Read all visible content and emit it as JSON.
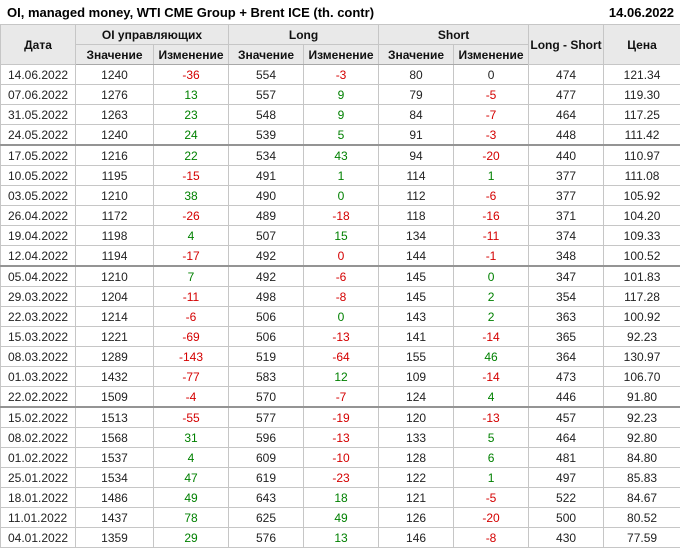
{
  "header": {
    "title": "OI, managed money, WTI CME Group + Brent ICE (th. contr)",
    "report_date": "14.06.2022"
  },
  "table_header": {
    "date": "Дата",
    "oi_group": "OI управляющих",
    "long_group": "Long",
    "short_group": "Short",
    "long_short": "Long - Short",
    "price": "Цена",
    "value": "Значение",
    "change": "Изменение"
  },
  "colors": {
    "positive": "#008000",
    "negative": "#d40000",
    "neutral": "#222222"
  },
  "chart_data": {
    "type": "table",
    "title": "OI, managed money, WTI CME Group + Brent ICE (th. contr)",
    "columns": [
      "Дата",
      "OI управляющих Значение",
      "OI управляющих Изменение",
      "Long Значение",
      "Long Изменение",
      "Short Значение",
      "Short Изменение",
      "Long - Short",
      "Цена"
    ],
    "rows": [
      {
        "date": "14.06.2022",
        "oi": "1240",
        "oi_chg": "-36",
        "oi_chg_c": "r",
        "long": "554",
        "long_chg": "-3",
        "long_chg_c": "r",
        "short": "80",
        "short_chg": "0",
        "short_chg_c": "k",
        "ls": "474",
        "price": "121.34",
        "sep": false
      },
      {
        "date": "07.06.2022",
        "oi": "1276",
        "oi_chg": "13",
        "oi_chg_c": "g",
        "long": "557",
        "long_chg": "9",
        "long_chg_c": "g",
        "short": "79",
        "short_chg": "-5",
        "short_chg_c": "r",
        "ls": "477",
        "price": "119.30",
        "sep": false
      },
      {
        "date": "31.05.2022",
        "oi": "1263",
        "oi_chg": "23",
        "oi_chg_c": "g",
        "long": "548",
        "long_chg": "9",
        "long_chg_c": "g",
        "short": "84",
        "short_chg": "-7",
        "short_chg_c": "r",
        "ls": "464",
        "price": "117.25",
        "sep": false
      },
      {
        "date": "24.05.2022",
        "oi": "1240",
        "oi_chg": "24",
        "oi_chg_c": "g",
        "long": "539",
        "long_chg": "5",
        "long_chg_c": "g",
        "short": "91",
        "short_chg": "-3",
        "short_chg_c": "r",
        "ls": "448",
        "price": "111.42",
        "sep": true
      },
      {
        "date": "17.05.2022",
        "oi": "1216",
        "oi_chg": "22",
        "oi_chg_c": "g",
        "long": "534",
        "long_chg": "43",
        "long_chg_c": "g",
        "short": "94",
        "short_chg": "-20",
        "short_chg_c": "r",
        "ls": "440",
        "price": "110.97",
        "sep": false
      },
      {
        "date": "10.05.2022",
        "oi": "1195",
        "oi_chg": "-15",
        "oi_chg_c": "r",
        "long": "491",
        "long_chg": "1",
        "long_chg_c": "g",
        "short": "114",
        "short_chg": "1",
        "short_chg_c": "g",
        "ls": "377",
        "price": "111.08",
        "sep": false
      },
      {
        "date": "03.05.2022",
        "oi": "1210",
        "oi_chg": "38",
        "oi_chg_c": "g",
        "long": "490",
        "long_chg": "0",
        "long_chg_c": "g",
        "short": "112",
        "short_chg": "-6",
        "short_chg_c": "r",
        "ls": "377",
        "price": "105.92",
        "sep": false
      },
      {
        "date": "26.04.2022",
        "oi": "1172",
        "oi_chg": "-26",
        "oi_chg_c": "r",
        "long": "489",
        "long_chg": "-18",
        "long_chg_c": "r",
        "short": "118",
        "short_chg": "-16",
        "short_chg_c": "r",
        "ls": "371",
        "price": "104.20",
        "sep": false
      },
      {
        "date": "19.04.2022",
        "oi": "1198",
        "oi_chg": "4",
        "oi_chg_c": "g",
        "long": "507",
        "long_chg": "15",
        "long_chg_c": "g",
        "short": "134",
        "short_chg": "-11",
        "short_chg_c": "r",
        "ls": "374",
        "price": "109.33",
        "sep": false
      },
      {
        "date": "12.04.2022",
        "oi": "1194",
        "oi_chg": "-17",
        "oi_chg_c": "r",
        "long": "492",
        "long_chg": "0",
        "long_chg_c": "r",
        "short": "144",
        "short_chg": "-1",
        "short_chg_c": "r",
        "ls": "348",
        "price": "100.52",
        "sep": true
      },
      {
        "date": "05.04.2022",
        "oi": "1210",
        "oi_chg": "7",
        "oi_chg_c": "g",
        "long": "492",
        "long_chg": "-6",
        "long_chg_c": "r",
        "short": "145",
        "short_chg": "0",
        "short_chg_c": "g",
        "ls": "347",
        "price": "101.83",
        "sep": false
      },
      {
        "date": "29.03.2022",
        "oi": "1204",
        "oi_chg": "-11",
        "oi_chg_c": "r",
        "long": "498",
        "long_chg": "-8",
        "long_chg_c": "r",
        "short": "145",
        "short_chg": "2",
        "short_chg_c": "g",
        "ls": "354",
        "price": "117.28",
        "sep": false
      },
      {
        "date": "22.03.2022",
        "oi": "1214",
        "oi_chg": "-6",
        "oi_chg_c": "r",
        "long": "506",
        "long_chg": "0",
        "long_chg_c": "g",
        "short": "143",
        "short_chg": "2",
        "short_chg_c": "g",
        "ls": "363",
        "price": "100.92",
        "sep": false
      },
      {
        "date": "15.03.2022",
        "oi": "1221",
        "oi_chg": "-69",
        "oi_chg_c": "r",
        "long": "506",
        "long_chg": "-13",
        "long_chg_c": "r",
        "short": "141",
        "short_chg": "-14",
        "short_chg_c": "r",
        "ls": "365",
        "price": "92.23",
        "sep": false
      },
      {
        "date": "08.03.2022",
        "oi": "1289",
        "oi_chg": "-143",
        "oi_chg_c": "r",
        "long": "519",
        "long_chg": "-64",
        "long_chg_c": "r",
        "short": "155",
        "short_chg": "46",
        "short_chg_c": "g",
        "ls": "364",
        "price": "130.97",
        "sep": false
      },
      {
        "date": "01.03.2022",
        "oi": "1432",
        "oi_chg": "-77",
        "oi_chg_c": "r",
        "long": "583",
        "long_chg": "12",
        "long_chg_c": "g",
        "short": "109",
        "short_chg": "-14",
        "short_chg_c": "r",
        "ls": "473",
        "price": "106.70",
        "sep": false
      },
      {
        "date": "22.02.2022",
        "oi": "1509",
        "oi_chg": "-4",
        "oi_chg_c": "r",
        "long": "570",
        "long_chg": "-7",
        "long_chg_c": "r",
        "short": "124",
        "short_chg": "4",
        "short_chg_c": "g",
        "ls": "446",
        "price": "91.80",
        "sep": true
      },
      {
        "date": "15.02.2022",
        "oi": "1513",
        "oi_chg": "-55",
        "oi_chg_c": "r",
        "long": "577",
        "long_chg": "-19",
        "long_chg_c": "r",
        "short": "120",
        "short_chg": "-13",
        "short_chg_c": "r",
        "ls": "457",
        "price": "92.23",
        "sep": false
      },
      {
        "date": "08.02.2022",
        "oi": "1568",
        "oi_chg": "31",
        "oi_chg_c": "g",
        "long": "596",
        "long_chg": "-13",
        "long_chg_c": "r",
        "short": "133",
        "short_chg": "5",
        "short_chg_c": "g",
        "ls": "464",
        "price": "92.80",
        "sep": false
      },
      {
        "date": "01.02.2022",
        "oi": "1537",
        "oi_chg": "4",
        "oi_chg_c": "g",
        "long": "609",
        "long_chg": "-10",
        "long_chg_c": "r",
        "short": "128",
        "short_chg": "6",
        "short_chg_c": "g",
        "ls": "481",
        "price": "84.80",
        "sep": false
      },
      {
        "date": "25.01.2022",
        "oi": "1534",
        "oi_chg": "47",
        "oi_chg_c": "g",
        "long": "619",
        "long_chg": "-23",
        "long_chg_c": "r",
        "short": "122",
        "short_chg": "1",
        "short_chg_c": "g",
        "ls": "497",
        "price": "85.83",
        "sep": false
      },
      {
        "date": "18.01.2022",
        "oi": "1486",
        "oi_chg": "49",
        "oi_chg_c": "g",
        "long": "643",
        "long_chg": "18",
        "long_chg_c": "g",
        "short": "121",
        "short_chg": "-5",
        "short_chg_c": "r",
        "ls": "522",
        "price": "84.67",
        "sep": false
      },
      {
        "date": "11.01.2022",
        "oi": "1437",
        "oi_chg": "78",
        "oi_chg_c": "g",
        "long": "625",
        "long_chg": "49",
        "long_chg_c": "g",
        "short": "126",
        "short_chg": "-20",
        "short_chg_c": "r",
        "ls": "500",
        "price": "80.52",
        "sep": false
      },
      {
        "date": "04.01.2022",
        "oi": "1359",
        "oi_chg": "29",
        "oi_chg_c": "g",
        "long": "576",
        "long_chg": "13",
        "long_chg_c": "g",
        "short": "146",
        "short_chg": "-8",
        "short_chg_c": "r",
        "ls": "430",
        "price": "77.59",
        "sep": false
      }
    ]
  }
}
